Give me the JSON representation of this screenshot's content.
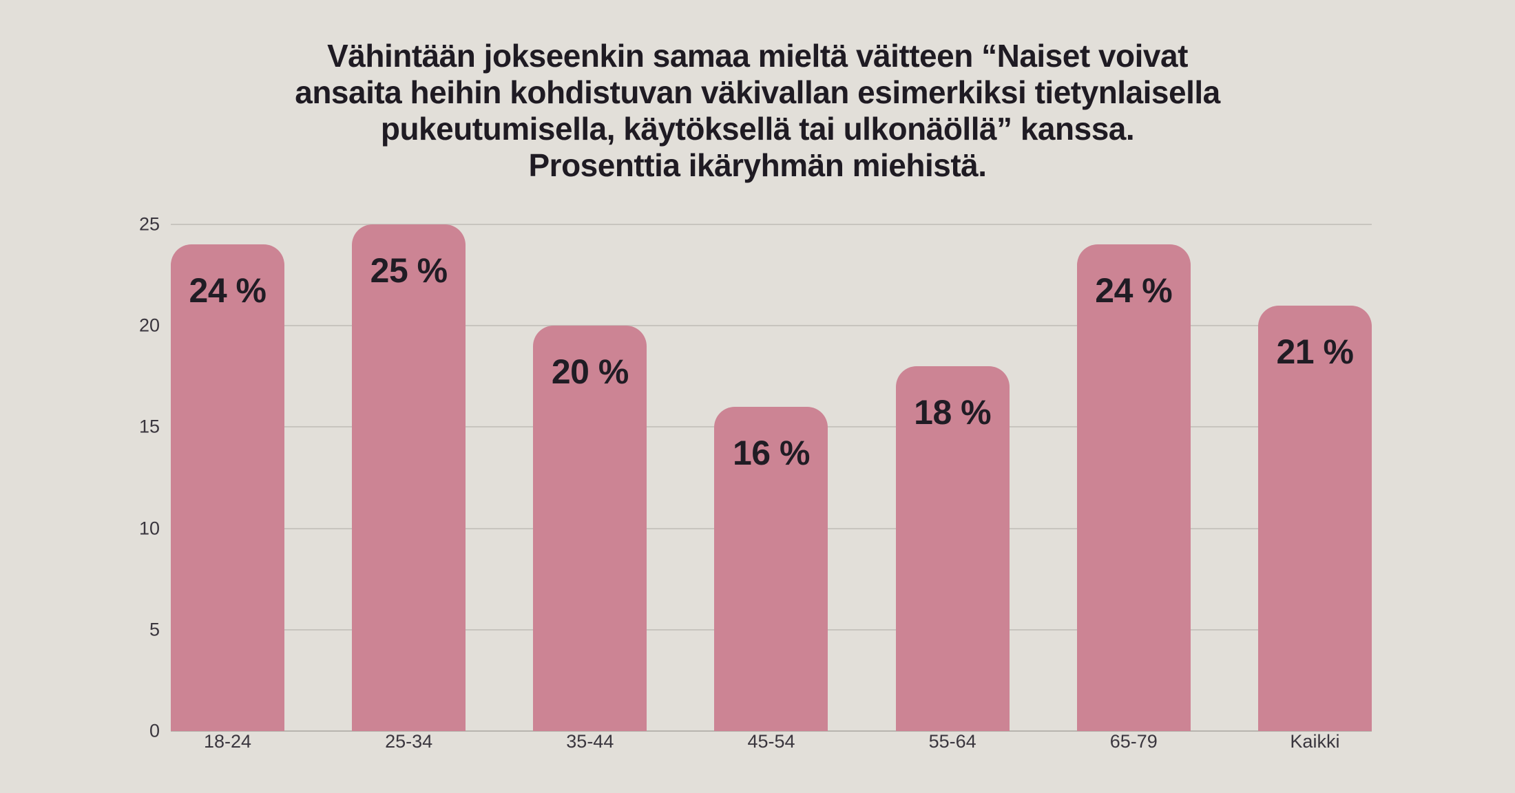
{
  "title": {
    "lines": [
      "Vähintään jokseenkin samaa mieltä väitteen “Naiset voivat",
      "ansaita heihin kohdistuvan väkivallan esimerkiksi tietynlaisella",
      "pukeutumisella, käytöksellä tai ulkonäöllä” kanssa.",
      "Prosenttia ikäryhmän miehistä."
    ]
  },
  "chart_data": {
    "type": "bar",
    "title": "Vähintään jokseenkin samaa mieltä väitteen “Naiset voivat ansaita heihin kohdistuvan väkivallan esimerkiksi tietynlaisella pukeutumisella, käytöksellä tai ulkonäöllä” kanssa. Prosenttia ikäryhmän miehistä.",
    "categories": [
      "18-24",
      "25-34",
      "35-44",
      "45-54",
      "55-64",
      "65-79",
      "Kaikki"
    ],
    "values": [
      24,
      25,
      20,
      16,
      18,
      24,
      21
    ],
    "value_labels": [
      "24 %",
      "25 %",
      "20 %",
      "16 %",
      "18 %",
      "24 %",
      "21 %"
    ],
    "xlabel": "",
    "ylabel": "",
    "ylim": [
      0,
      25
    ],
    "yticks": [
      {
        "value": 0,
        "label": "0"
      },
      {
        "value": 5,
        "label": "5"
      },
      {
        "value": 10,
        "label": "10"
      },
      {
        "value": 15,
        "label": "15"
      },
      {
        "value": 20,
        "label": "20"
      },
      {
        "value": 25,
        "label": "25"
      }
    ],
    "grid": "horizontal",
    "legend_position": "none",
    "colors": {
      "background": "#e2dfd9",
      "bar": "#cc8494",
      "gridline": "#c7c4be",
      "baseline": "#b7b4ae",
      "title_text": "#1f1b23",
      "value_label_text": "#201c24",
      "axis_text": "#3a363e"
    }
  }
}
